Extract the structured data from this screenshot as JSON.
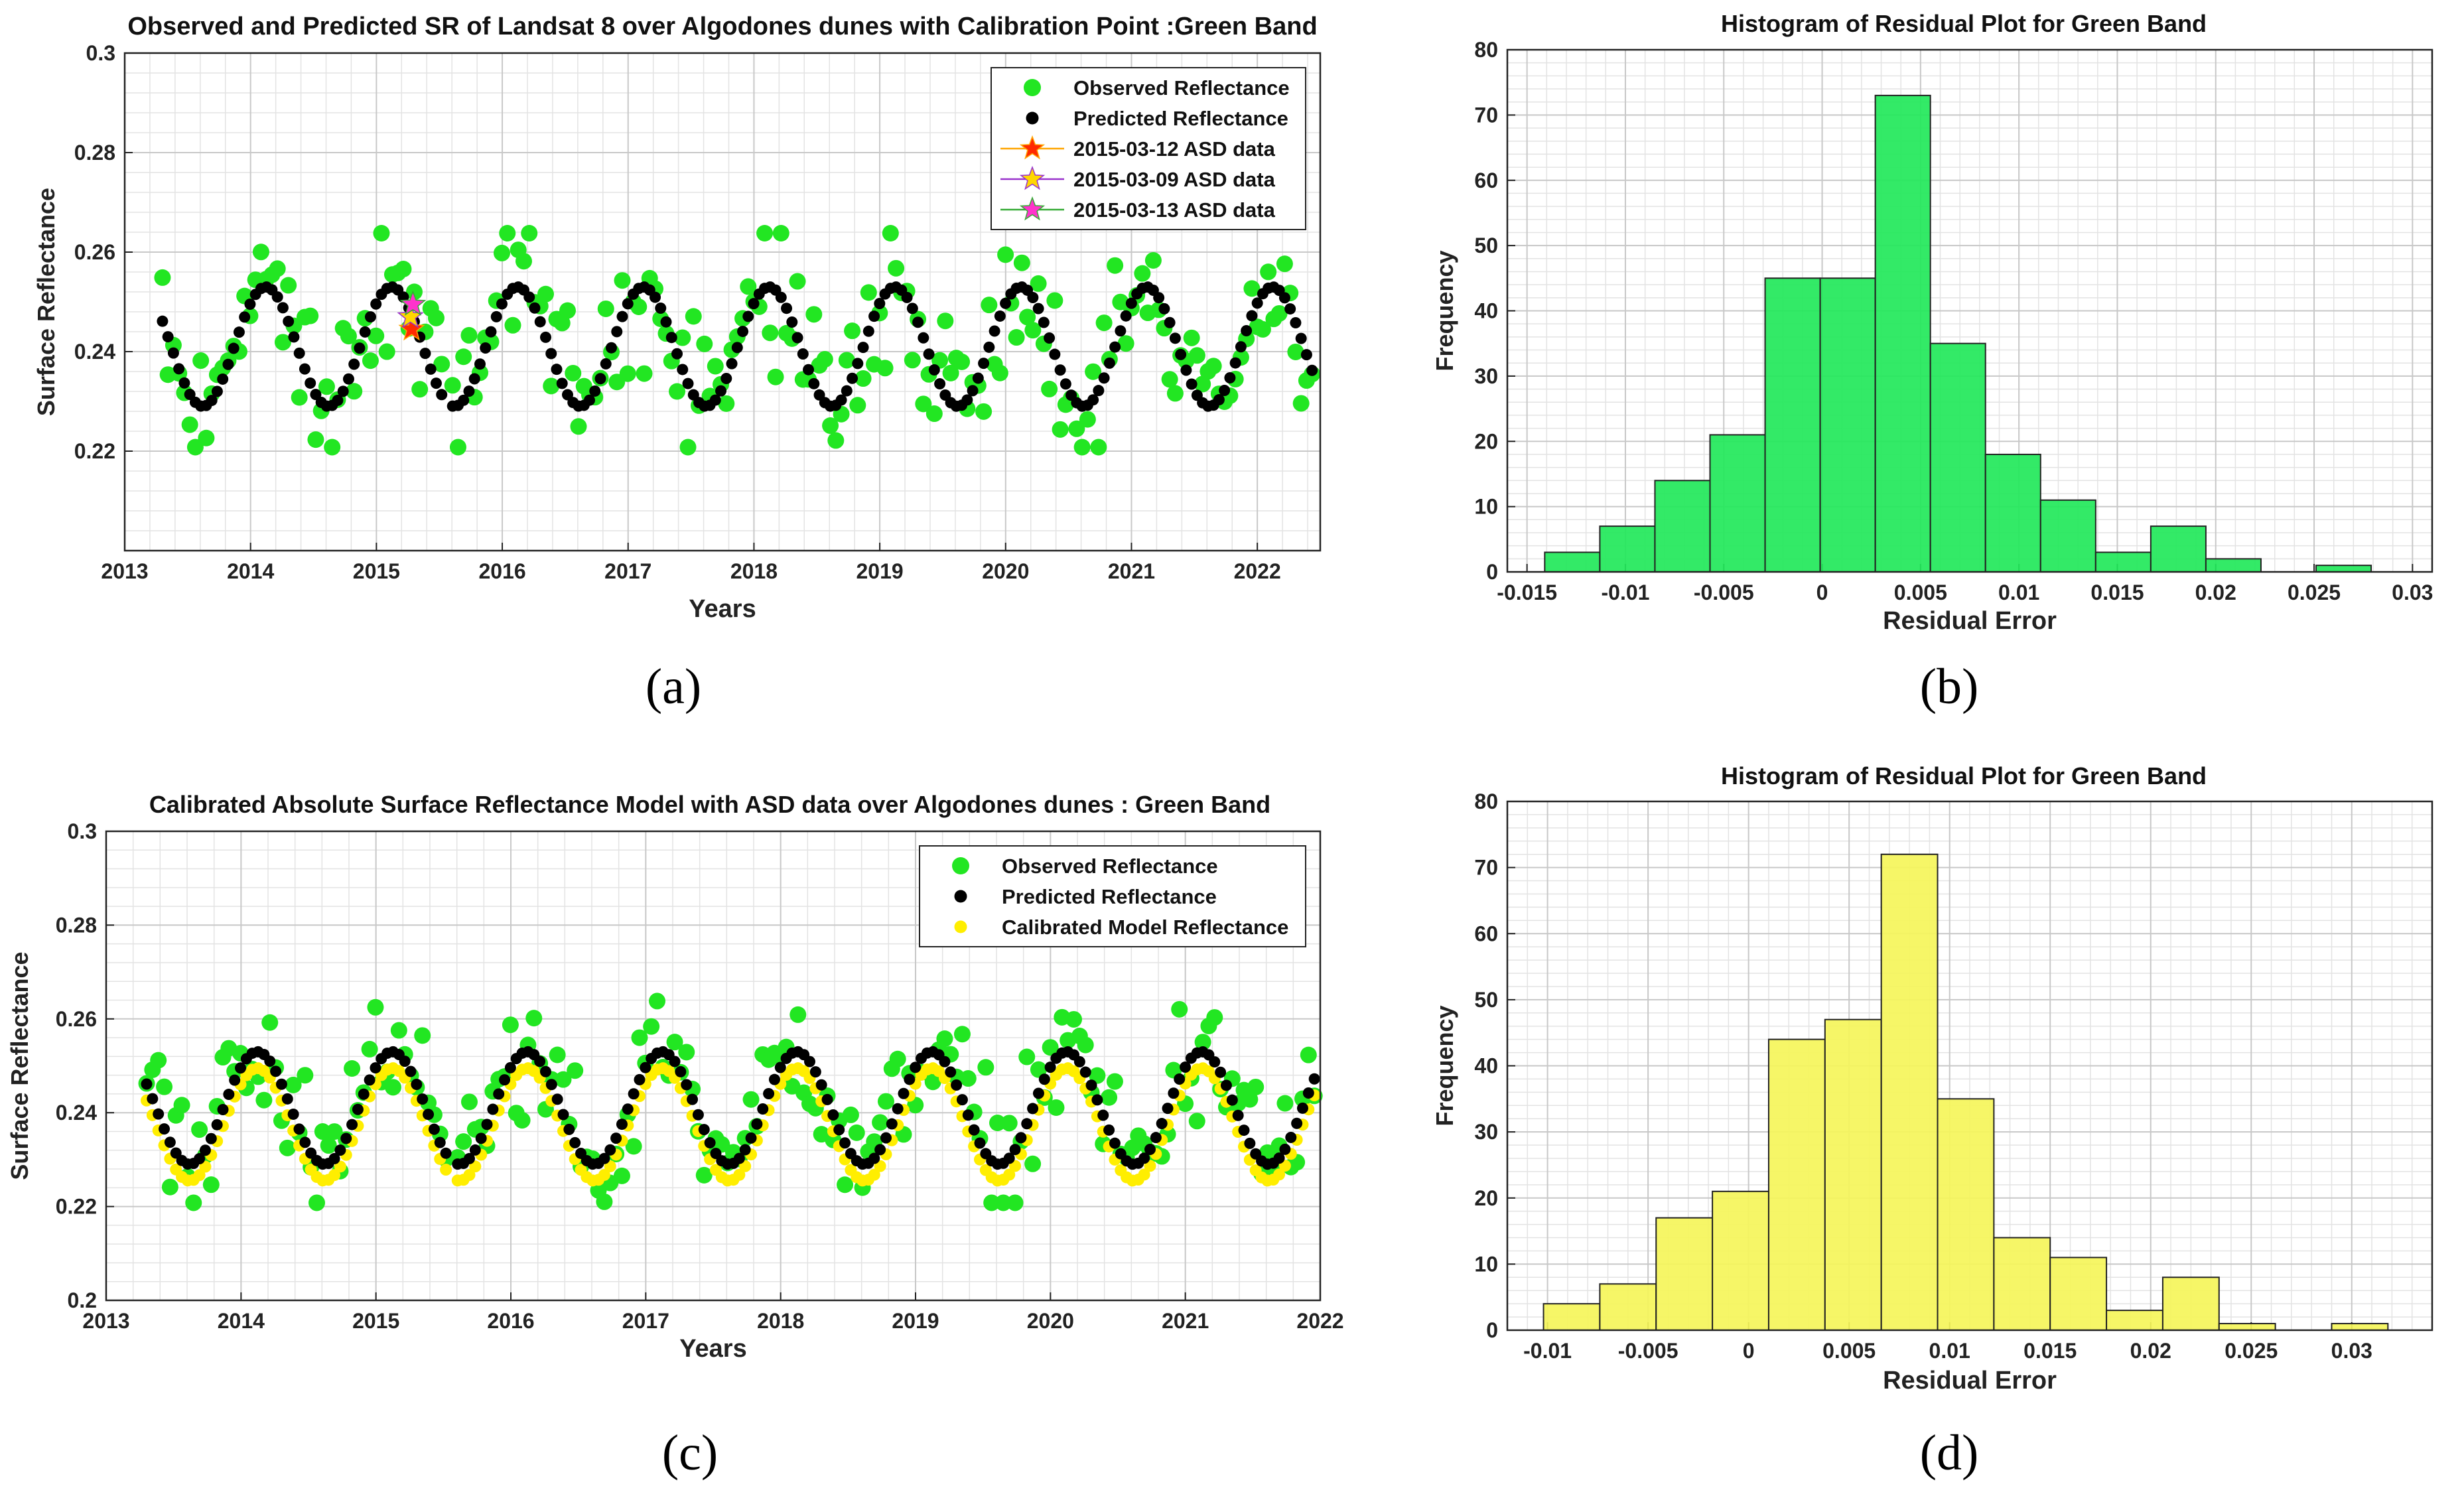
{
  "chart_data": [
    {
      "id": "a",
      "type": "scatter",
      "panel_label": "(a)",
      "title": "Observed and Predicted SR of Landsat 8 over Algodones dunes with Calibration Point :Green Band",
      "xlabel": "Years",
      "ylabel": "Surface Reflectance",
      "xlim": [
        2013,
        2022.5
      ],
      "ylim": [
        0.2,
        0.3
      ],
      "xticks": [
        "2013",
        "2014",
        "2015",
        "2016",
        "2017",
        "2018",
        "2019",
        "2020",
        "2021",
        "2022"
      ],
      "yticks": [
        "0.22",
        "0.24",
        "0.26",
        "0.28",
        "0.3"
      ],
      "grid": true,
      "legend_position": "top-right",
      "series": [
        {
          "name": "Observed Reflectance",
          "color": "#22e622",
          "marker": "circle",
          "note": "seasonal cycle, approx. range 0.221-0.264"
        },
        {
          "name": "Predicted Reflectance",
          "color": "#000000",
          "marker": "circle",
          "note": "sinusoid between ~0.229 and ~0.253, annual period"
        },
        {
          "name": "2015-03-12 ASD data",
          "color": "#ff2a00",
          "line_color": "#ffa500",
          "marker": "star",
          "points": [
            [
              2015.28,
              0.2445
            ]
          ]
        },
        {
          "name": "2015-03-09 ASD data",
          "color": "#ffd700",
          "line_color": "#9932cc",
          "marker": "star",
          "points": [
            [
              2015.27,
              0.247
            ]
          ]
        },
        {
          "name": "2015-03-13 ASD data",
          "color": "#ff33cc",
          "line_color": "#33aa33",
          "marker": "star",
          "points": [
            [
              2015.29,
              0.2495
            ]
          ]
        }
      ]
    },
    {
      "id": "b",
      "type": "bar",
      "panel_label": "(b)",
      "title": "Histogram of Residual Plot for Green Band",
      "xlabel": "Residual Error",
      "ylabel": "Frequency",
      "xlim": [
        -0.016,
        0.031
      ],
      "ylim": [
        0,
        80
      ],
      "xticks": [
        "-0.015",
        "-0.01",
        "-0.005",
        "0",
        "0.005",
        "0.01",
        "0.015",
        "0.02",
        "0.025",
        "0.03"
      ],
      "yticks": [
        "0",
        "10",
        "20",
        "30",
        "40",
        "50",
        "60",
        "70",
        "80"
      ],
      "bar_color": "#22e85a",
      "bin_edges": [
        -0.0141,
        -0.0113,
        -0.0085,
        -0.0057,
        -0.0029,
        -0.0001,
        0.0027,
        0.0055,
        0.0083,
        0.0111,
        0.0139,
        0.0167,
        0.0195,
        0.0223,
        0.0251,
        0.0279
      ],
      "values": [
        3,
        7,
        14,
        21,
        45,
        45,
        73,
        35,
        18,
        11,
        3,
        7,
        2,
        0,
        1
      ]
    },
    {
      "id": "c",
      "type": "scatter",
      "panel_label": "(c)",
      "title": "Calibrated Absolute Surface Reflectance Model with ASD data over Algodones dunes : Green Band",
      "xlabel": "Years",
      "ylabel": "Surface Reflectance",
      "xlim": [
        2013,
        2022
      ],
      "ylim": [
        0.2,
        0.3
      ],
      "xticks": [
        "2013",
        "2014",
        "2015",
        "2016",
        "2017",
        "2018",
        "2019",
        "2020",
        "2021",
        "2022"
      ],
      "yticks": [
        "0.2",
        "0.22",
        "0.24",
        "0.26",
        "0.28",
        "0.3"
      ],
      "grid": true,
      "legend_position": "top-right",
      "series": [
        {
          "name": "Observed Reflectance",
          "color": "#22e622",
          "marker": "circle"
        },
        {
          "name": "Predicted Reflectance",
          "color": "#000000",
          "marker": "circle"
        },
        {
          "name": "Calibrated Model Reflectance",
          "color": "#ffee00",
          "marker": "circle",
          "note": "predicted shifted down by ~0.0035"
        }
      ]
    },
    {
      "id": "d",
      "type": "bar",
      "panel_label": "(d)",
      "title": "Histogram of Residual Plot for Green Band",
      "xlabel": "Residual Error",
      "ylabel": "Frequency",
      "xlim": [
        -0.012,
        0.034
      ],
      "ylim": [
        0,
        80
      ],
      "xticks": [
        "-0.01",
        "-0.005",
        "0",
        "0.005",
        "0.01",
        "0.015",
        "0.02",
        "0.025",
        "0.03"
      ],
      "yticks": [
        "0",
        "10",
        "20",
        "30",
        "40",
        "50",
        "60",
        "70",
        "80"
      ],
      "bar_color": "#f5f55a",
      "bin_edges": [
        -0.0102,
        -0.0074,
        -0.0046,
        -0.0018,
        0.001,
        0.0038,
        0.0066,
        0.0094,
        0.0122,
        0.015,
        0.0178,
        0.0206,
        0.0234,
        0.0262,
        0.029,
        0.0318
      ],
      "values": [
        4,
        7,
        17,
        21,
        44,
        47,
        72,
        35,
        14,
        11,
        3,
        8,
        1,
        0,
        1
      ]
    }
  ]
}
